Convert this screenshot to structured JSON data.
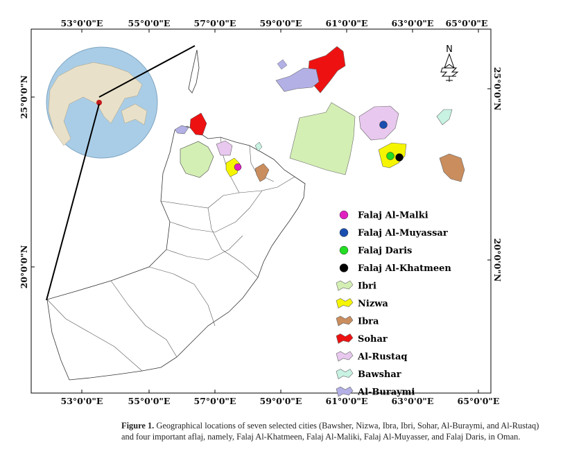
{
  "map": {
    "top_ticks": [
      "53°0'0\"E",
      "55°0'0\"E",
      "57°0'0\"E",
      "59°0'0\"E",
      "61°0'0\"E",
      "63°0'0\"E",
      "65°0'0\"E"
    ],
    "bottom_ticks": [
      "53°0'0\"E",
      "55°0'0\"E",
      "57°0'0\"E",
      "59°0'0\"E",
      "61°0'0\"E",
      "63°0'0\"E",
      "65°0'0\"E"
    ],
    "left_ticks": [
      "25°0'0\"N",
      "20°0'0\"N"
    ],
    "right_ticks": [
      "25°0'0\"N",
      "20°0'0\"N"
    ],
    "north_arrow_label": "N"
  },
  "legend": {
    "points": [
      {
        "label": "Falaj Al-Malki",
        "color": "#e020c0"
      },
      {
        "label": "Falaj Al-Muyassar",
        "color": "#1a4fb0"
      },
      {
        "label": "Falaj Daris",
        "color": "#22dd22"
      },
      {
        "label": "Falaj Al-Khatmeen",
        "color": "#000000"
      }
    ],
    "areas": [
      {
        "label": "Ibri",
        "color": "#d4efb4"
      },
      {
        "label": "Nizwa",
        "color": "#f5f500"
      },
      {
        "label": "Ibra",
        "color": "#c98d5e"
      },
      {
        "label": "Sohar",
        "color": "#ee1111"
      },
      {
        "label": "Al-Rustaq",
        "color": "#e8c8ee"
      },
      {
        "label": "Bawshar",
        "color": "#c8f2e2"
      },
      {
        "label": "Al-Buraymi",
        "color": "#b3b0e6"
      }
    ]
  },
  "caption": {
    "label": "Figure 1.",
    "text": "Geographical locations of seven selected cities (Bawsher, Nizwa, Ibra, Ibri, Sohar, Al-Buraymi, and Al-Rustaq) and four important aflaj, namely, Falaj Al-Khatmeen, Falaj Al-Maliki, Falaj Al-Muyasser, and Falaj Daris, in Oman."
  }
}
